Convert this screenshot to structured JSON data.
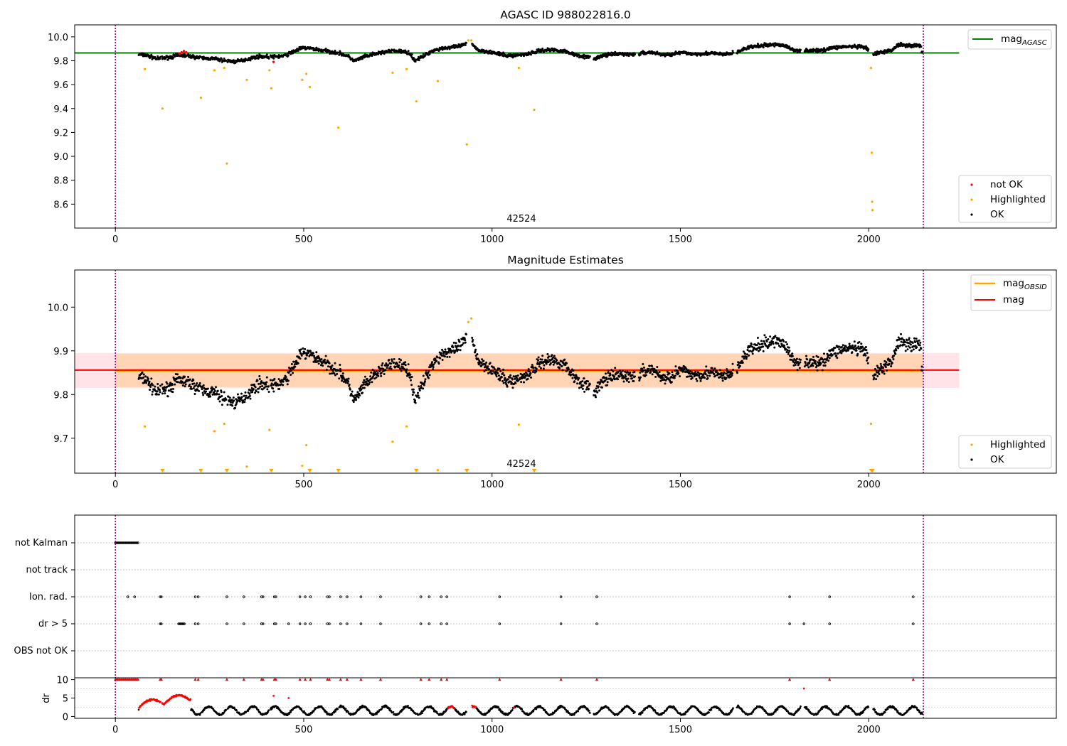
{
  "chart_data": [
    {
      "type": "scatter",
      "title": "AGASC ID 988022816.0",
      "xlabel": "",
      "ylabel": "",
      "xlim": [
        -108,
        2498
      ],
      "ylim": [
        8.4,
        10.1
      ],
      "xticks": [
        0,
        500,
        1000,
        1500,
        2000
      ],
      "xtick_labels": [
        "0",
        "500",
        "1000",
        "1500",
        "2000"
      ],
      "yticks": [
        8.6,
        8.8,
        9.0,
        9.2,
        9.4,
        9.6,
        9.8,
        10.0
      ],
      "ytick_labels": [
        "8.6",
        "8.8",
        "9.0",
        "9.2",
        "9.4",
        "9.6",
        "9.8",
        "10.0"
      ],
      "obsid_bounds": [
        0,
        2145
      ],
      "obsid_label": "42524",
      "obsid_label_x": 1071,
      "reference_lines": [
        {
          "name": "mag",
          "subscript": "AGASC",
          "value": 9.865,
          "x_range": [
            -108,
            2240
          ],
          "color": "#008000"
        }
      ],
      "series": [
        {
          "name": "not OK",
          "color": "#ff0000",
          "points": [
            [
              170,
              9.86
            ],
            [
              176,
              9.87
            ],
            [
              182,
              9.88
            ],
            [
              188,
              9.87
            ],
            [
              420,
              9.79
            ]
          ]
        },
        {
          "name": "Highlighted",
          "color": "#ffa500",
          "points": [
            [
              78,
              9.73
            ],
            [
              125,
              9.4
            ],
            [
              227,
              9.49
            ],
            [
              263,
              9.72
            ],
            [
              289,
              9.74
            ],
            [
              296,
              8.94
            ],
            [
              349,
              9.64
            ],
            [
              409,
              9.72
            ],
            [
              414,
              9.57
            ],
            [
              496,
              9.64
            ],
            [
              507,
              9.69
            ],
            [
              516,
              9.58
            ],
            [
              592,
              9.24
            ],
            [
              736,
              9.7
            ],
            [
              773,
              9.73
            ],
            [
              799,
              9.46
            ],
            [
              856,
              9.63
            ],
            [
              933,
              9.1
            ],
            [
              937,
              9.97
            ],
            [
              945,
              9.97
            ],
            [
              1071,
              9.74
            ],
            [
              1112,
              9.39
            ],
            [
              2006,
              9.74
            ],
            [
              2008,
              9.03
            ],
            [
              2009,
              8.62
            ],
            [
              2010,
              8.55
            ]
          ]
        },
        {
          "name": "OK",
          "color": "#000000",
          "points": "light curve, ~2000 samples from x=60 to x=2140, y mostly 9.78-9.95"
        }
      ],
      "legend_lines": [
        {
          "label": "mag",
          "subscript": "AGASC",
          "color": "#008000"
        }
      ],
      "legend_points": [
        {
          "label": "not OK",
          "color": "#ff0000"
        },
        {
          "label": "Highlighted",
          "color": "#ffa500"
        },
        {
          "label": "OK",
          "color": "#000000"
        }
      ]
    },
    {
      "type": "scatter",
      "title": "Magnitude Estimates",
      "xlabel": "",
      "ylabel": "",
      "xlim": [
        -108,
        2498
      ],
      "ylim": [
        9.62,
        10.085
      ],
      "xticks": [
        0,
        500,
        1000,
        1500,
        2000
      ],
      "xtick_labels": [
        "0",
        "500",
        "1000",
        "1500",
        "2000"
      ],
      "yticks": [
        9.7,
        9.8,
        9.9,
        10.0
      ],
      "ytick_labels": [
        "9.7",
        "9.8",
        "9.9",
        "10.0"
      ],
      "obsid_bounds": [
        0,
        2145
      ],
      "obsid_label": "42524",
      "obsid_label_x": 1071,
      "bands": [
        {
          "name": "mag band",
          "y_range": [
            9.815,
            9.895
          ],
          "x_range": [
            -108,
            2240
          ],
          "color": "#ffc0cb",
          "opacity": 0.45
        },
        {
          "name": "mag OBSID band",
          "y_range": [
            9.817,
            9.893
          ],
          "x_range": [
            0,
            2145
          ],
          "color": "#ffa500",
          "opacity": 0.22
        }
      ],
      "reference_lines": [
        {
          "name": "mag",
          "subscript": "OBSID",
          "value": 9.854,
          "x_range": [
            0,
            2145
          ],
          "color": "#ffa500"
        },
        {
          "name": "mag",
          "value": 9.856,
          "x_range": [
            -108,
            2240
          ],
          "color": "#ff0000"
        }
      ],
      "series": [
        {
          "name": "Highlighted",
          "color": "#ffa500",
          "points": [
            [
              78,
              9.727
            ],
            [
              263,
              9.716
            ],
            [
              289,
              9.733
            ],
            [
              349,
              9.635
            ],
            [
              409,
              9.719
            ],
            [
              496,
              9.637
            ],
            [
              507,
              9.684
            ],
            [
              736,
              9.692
            ],
            [
              773,
              9.727
            ],
            [
              856,
              9.627
            ],
            [
              937,
              9.966
            ],
            [
              945,
              9.974
            ],
            [
              1071,
              9.731
            ],
            [
              2006,
              9.733
            ]
          ]
        },
        {
          "name": "Highlighted (below range)",
          "color": "#ffa500",
          "marker": "triangle-down",
          "points": [
            [
              125,
              9.62
            ],
            [
              227,
              9.62
            ],
            [
              296,
              9.62
            ],
            [
              414,
              9.62
            ],
            [
              516,
              9.62
            ],
            [
              592,
              9.62
            ],
            [
              799,
              9.62
            ],
            [
              933,
              9.62
            ],
            [
              1112,
              9.62
            ],
            [
              2007,
              9.62
            ],
            [
              2010,
              9.62
            ]
          ]
        },
        {
          "name": "OK",
          "color": "#000000",
          "points": "light curve, same samples as upper panel, y mostly 9.75-9.95"
        }
      ],
      "legend_lines": [
        {
          "label": "mag",
          "subscript": "OBSID",
          "color": "#ffa500"
        },
        {
          "label": "mag",
          "color": "#ff0000"
        }
      ],
      "legend_points": [
        {
          "label": "Highlighted",
          "color": "#ffa500"
        },
        {
          "label": "OK",
          "color": "#000000"
        }
      ]
    },
    {
      "type": "scatter",
      "title": "",
      "xlabel": "",
      "ylabel": "",
      "xlim": [
        -108,
        2498
      ],
      "category_rows": [
        "not Kalman",
        "not track",
        "Ion. rad.",
        "dr > 5",
        "OBS not OK"
      ],
      "obsid_bounds": [
        0,
        2145
      ],
      "rows": {
        "not Kalman": {
          "x_range": [
            0,
            62
          ]
        },
        "not track": {
          "x_range": []
        },
        "Ion. rad.": {
          "x": [
            33,
            51,
            119,
            122,
            212,
            220,
            296,
            341,
            388,
            392,
            422,
            426,
            490,
            504,
            518,
            563,
            568,
            598,
            615,
            652,
            704,
            811,
            833,
            865,
            880,
            1020,
            1183,
            1278,
            1790,
            1896,
            2118
          ]
        },
        "dr > 5": {
          "x_range": [
            168,
            184
          ],
          "x": [
            119,
            122,
            212,
            220,
            296,
            341,
            388,
            392,
            422,
            426,
            460,
            490,
            504,
            518,
            563,
            568,
            598,
            615,
            652,
            704,
            811,
            833,
            865,
            880,
            1020,
            1183,
            1278,
            1790,
            1828,
            1896,
            2118
          ]
        },
        "OBS not OK": {
          "x_range": []
        }
      }
    },
    {
      "type": "scatter",
      "title": "",
      "xlabel": "",
      "ylabel": "dr",
      "xlim": [
        -108,
        2498
      ],
      "ylim": [
        -0.5,
        10.5
      ],
      "xticks": [
        0,
        500,
        1000,
        1500,
        2000
      ],
      "xtick_labels": [
        "0",
        "500",
        "1000",
        "1500",
        "2000"
      ],
      "yticks": [
        0,
        5,
        10
      ],
      "ytick_labels": [
        "0",
        "5",
        "10"
      ],
      "obsid_bounds": [
        0,
        2145
      ],
      "series": [
        {
          "name": "dr > 5 (clipped at 10)",
          "color": "#ff0000",
          "points": [
            [
              0,
              10
            ],
            [
              62,
              10
            ],
            [
              119,
              10
            ],
            [
              122,
              10
            ],
            [
              212,
              10
            ],
            [
              220,
              10
            ],
            [
              296,
              10
            ],
            [
              341,
              10
            ],
            [
              388,
              10
            ],
            [
              392,
              10
            ],
            [
              422,
              10
            ],
            [
              426,
              10
            ],
            [
              490,
              10
            ],
            [
              504,
              10
            ],
            [
              518,
              10
            ],
            [
              563,
              10
            ],
            [
              568,
              10
            ],
            [
              598,
              10
            ],
            [
              615,
              10
            ],
            [
              652,
              10
            ],
            [
              704,
              10
            ],
            [
              811,
              10
            ],
            [
              833,
              10
            ],
            [
              865,
              10
            ],
            [
              880,
              10
            ],
            [
              1020,
              10
            ],
            [
              1183,
              10
            ],
            [
              1278,
              10
            ],
            [
              1790,
              10
            ],
            [
              1896,
              10
            ],
            [
              2118,
              10
            ]
          ]
        },
        {
          "name": "outliers",
          "color": "#ff0000",
          "points": [
            [
              420,
              5.6
            ],
            [
              460,
              5.0
            ],
            [
              1828,
              7.6
            ]
          ]
        },
        {
          "name": "dr",
          "color": "#000000",
          "points": "~2000 samples, values 0.5-4"
        }
      ]
    }
  ]
}
